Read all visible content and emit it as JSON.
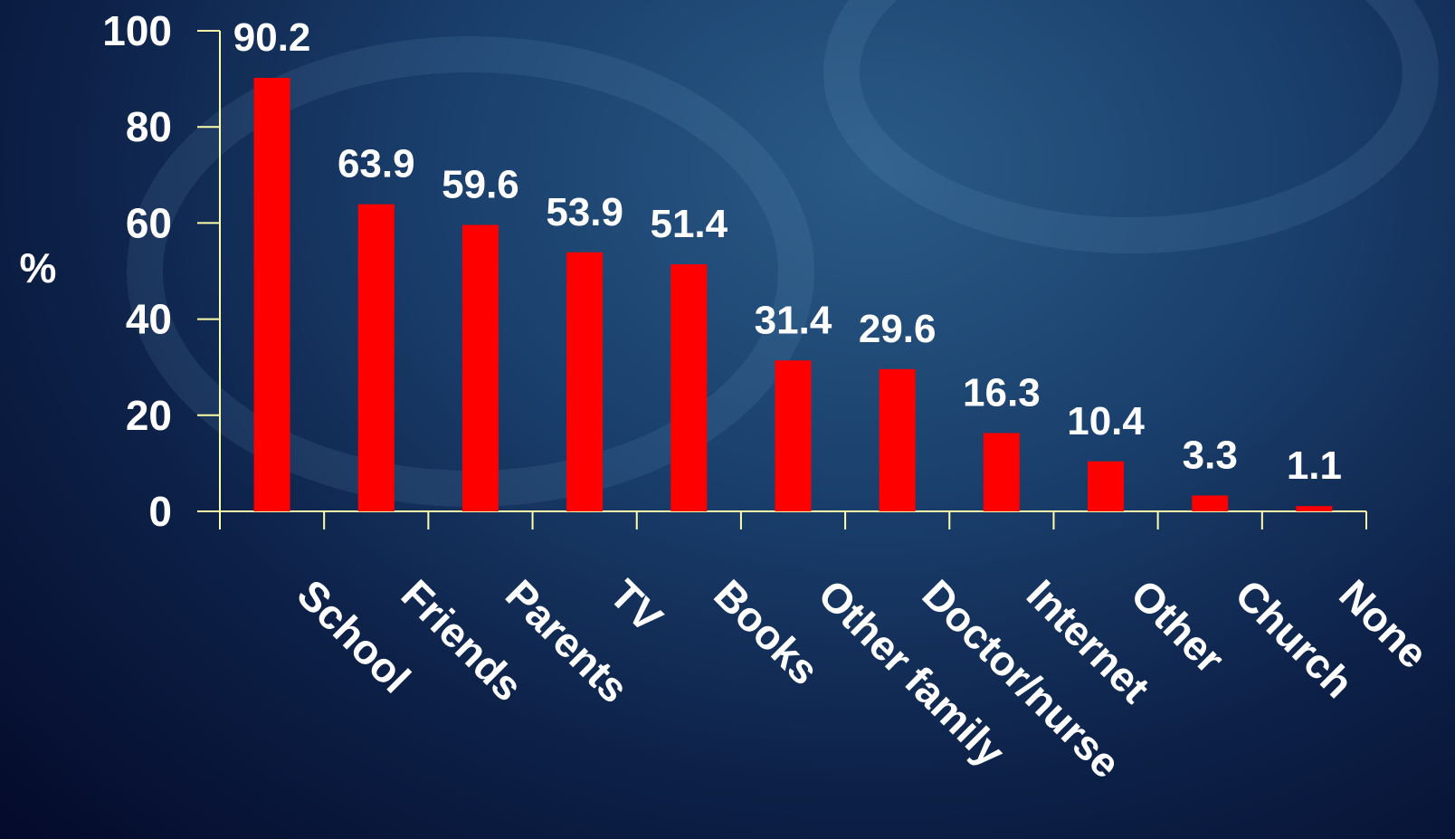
{
  "chart_data": {
    "type": "bar",
    "ylabel": "%",
    "xlabel": "",
    "ylim": [
      0,
      100
    ],
    "yticks": [
      0,
      20,
      40,
      60,
      80,
      100
    ],
    "categories": [
      "School",
      "Friends",
      "Parents",
      "TV",
      "Books",
      "Other family",
      "Doctor/nurse",
      "Internet",
      "Other",
      "Church",
      "None"
    ],
    "values": [
      90.2,
      63.9,
      59.6,
      53.9,
      51.4,
      31.4,
      29.6,
      16.3,
      10.4,
      3.3,
      1.1
    ],
    "value_labels": [
      "90.2",
      "63.9",
      "59.6",
      "53.9",
      "51.4",
      "31.4",
      "29.6",
      "16.3",
      "10.4",
      "3.3",
      "1.1"
    ],
    "colors": {
      "bar": "#ff0000",
      "axis": "#ffffaa",
      "text": "#ffffff"
    },
    "grid": false,
    "legend": "none"
  }
}
